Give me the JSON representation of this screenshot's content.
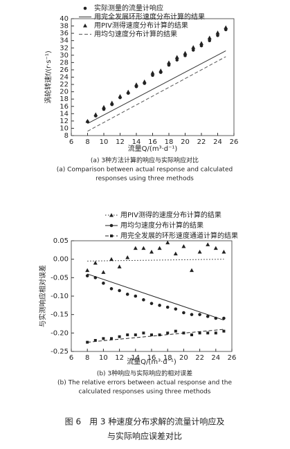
{
  "chart_data": [
    {
      "type": "scatter",
      "xlabel": "流量Q/(m³·d⁻¹)",
      "ylabel": "涡轮转速f/(r·s⁻¹)",
      "caption": [
        "(a) 3种方法计算的响应与实际响应对比",
        "(a) Comparison between actual response and calculated",
        "responses using three methods"
      ],
      "xlim": [
        6,
        26
      ],
      "xticks": [
        6,
        8,
        10,
        12,
        14,
        16,
        18,
        20,
        22,
        24,
        26
      ],
      "ylim": [
        8,
        40
      ],
      "yticks": [
        8,
        10,
        12,
        14,
        16,
        18,
        20,
        22,
        24,
        26,
        28,
        30,
        32,
        34,
        36,
        38,
        40
      ],
      "series": [
        {
          "name": "实际测量的流量计响应",
          "marker": "dot",
          "color": "#222",
          "x": [
            8,
            9,
            10,
            11,
            12,
            13,
            14,
            15,
            16,
            17,
            18,
            19,
            20,
            21,
            22,
            23,
            24,
            25
          ],
          "values": [
            11.8,
            13.4,
            15.2,
            16.5,
            18.4,
            19.6,
            21.4,
            22.3,
            24.5,
            25.3,
            27.3,
            28.7,
            29.9,
            31.4,
            32.6,
            34.0,
            35.4,
            37.0
          ]
        },
        {
          "name": "用完全发展环形速度分布计算的结果",
          "line": "solid",
          "color": "#333",
          "x": [
            8,
            25
          ],
          "values": [
            11.3,
            31.2
          ]
        },
        {
          "name": "用PIV测得速度分布计算的结果",
          "marker": "triangle",
          "color": "#222",
          "x": [
            8,
            9,
            10,
            11,
            12,
            13,
            14,
            15,
            16,
            17,
            18,
            19,
            20,
            21,
            22,
            23,
            24,
            25
          ],
          "values": [
            12.0,
            13.8,
            15.8,
            17.0,
            18.8,
            20.0,
            22.0,
            22.8,
            25.2,
            25.8,
            28.0,
            29.5,
            30.6,
            32.2,
            33.3,
            34.8,
            36.2,
            37.6
          ]
        },
        {
          "name": "用均匀速度分布计算的结果",
          "line": "dashed",
          "color": "#555",
          "x": [
            8,
            25
          ],
          "values": [
            9.2,
            29.6
          ]
        }
      ]
    },
    {
      "type": "scatter",
      "xlabel": "流量Q/(m³·d⁻¹)",
      "ylabel": "与实测响应相对误差",
      "caption": [
        "(b) 3种响应与实际响应的相对误差",
        "(b) The relative errors between actual response and the",
        "calculated responses using three methods"
      ],
      "xlim": [
        6,
        26
      ],
      "xticks": [
        6,
        8,
        10,
        12,
        14,
        16,
        18,
        20,
        22,
        24,
        26
      ],
      "ylim": [
        -0.25,
        0.05
      ],
      "yticks": [
        -0.25,
        {
          "value": -0.2,
          "label": "-0.20"
        },
        -0.15,
        {
          "value": -0.1,
          "label": "-0.10"
        },
        -0.05,
        {
          "value": 0,
          "label": "0.00"
        },
        0.05
      ],
      "series": [
        {
          "name": "用PIV测得的速度分布计算的结果",
          "marker": "triangle",
          "line": "dotted",
          "color": "#222",
          "x": [
            8,
            9,
            10,
            11,
            12,
            13,
            14,
            15,
            16,
            17,
            18,
            19,
            20,
            21,
            22,
            23,
            24,
            25
          ],
          "values": [
            -0.03,
            -0.01,
            -0.035,
            0.0,
            -0.02,
            0.005,
            0.03,
            0.03,
            0.02,
            0.03,
            0.045,
            0.015,
            0.035,
            -0.03,
            0.02,
            0.04,
            0.03,
            0.02
          ],
          "trend_x": [
            8,
            25
          ],
          "trend_values": [
            -0.005,
            0.0
          ]
        },
        {
          "name": "用均匀速度分布计算的结果",
          "marker": "dot",
          "line": "solid",
          "color": "#222",
          "x": [
            8,
            9,
            10,
            11,
            12,
            13,
            14,
            15,
            16,
            17,
            18,
            19,
            20,
            21,
            22,
            23,
            24,
            25
          ],
          "values": [
            -0.045,
            -0.05,
            -0.065,
            -0.08,
            -0.085,
            -0.095,
            -0.1,
            -0.11,
            -0.12,
            -0.125,
            -0.13,
            -0.135,
            -0.145,
            -0.15,
            -0.15,
            -0.155,
            -0.16,
            -0.16
          ],
          "trend_x": [
            8,
            25
          ],
          "trend_values": [
            -0.04,
            -0.165
          ]
        },
        {
          "name": "用完全发展的环形速度通道计算的结果",
          "marker": "square",
          "line": "dashed",
          "color": "#222",
          "x": [
            8,
            9,
            10,
            11,
            12,
            13,
            14,
            15,
            16,
            17,
            18,
            19,
            20,
            21,
            22,
            23,
            24,
            25
          ],
          "values": [
            -0.225,
            -0.22,
            -0.215,
            -0.215,
            -0.21,
            -0.205,
            -0.205,
            -0.2,
            -0.205,
            -0.205,
            -0.2,
            -0.195,
            -0.2,
            -0.205,
            -0.2,
            -0.2,
            -0.2,
            -0.195
          ],
          "trend_x": [
            8,
            25
          ],
          "trend_values": [
            -0.225,
            -0.19
          ]
        }
      ]
    }
  ],
  "figure_caption": [
    "图 6　用 3 种速度分布求解的流量计响应及",
    "与实际响应误差对比"
  ]
}
